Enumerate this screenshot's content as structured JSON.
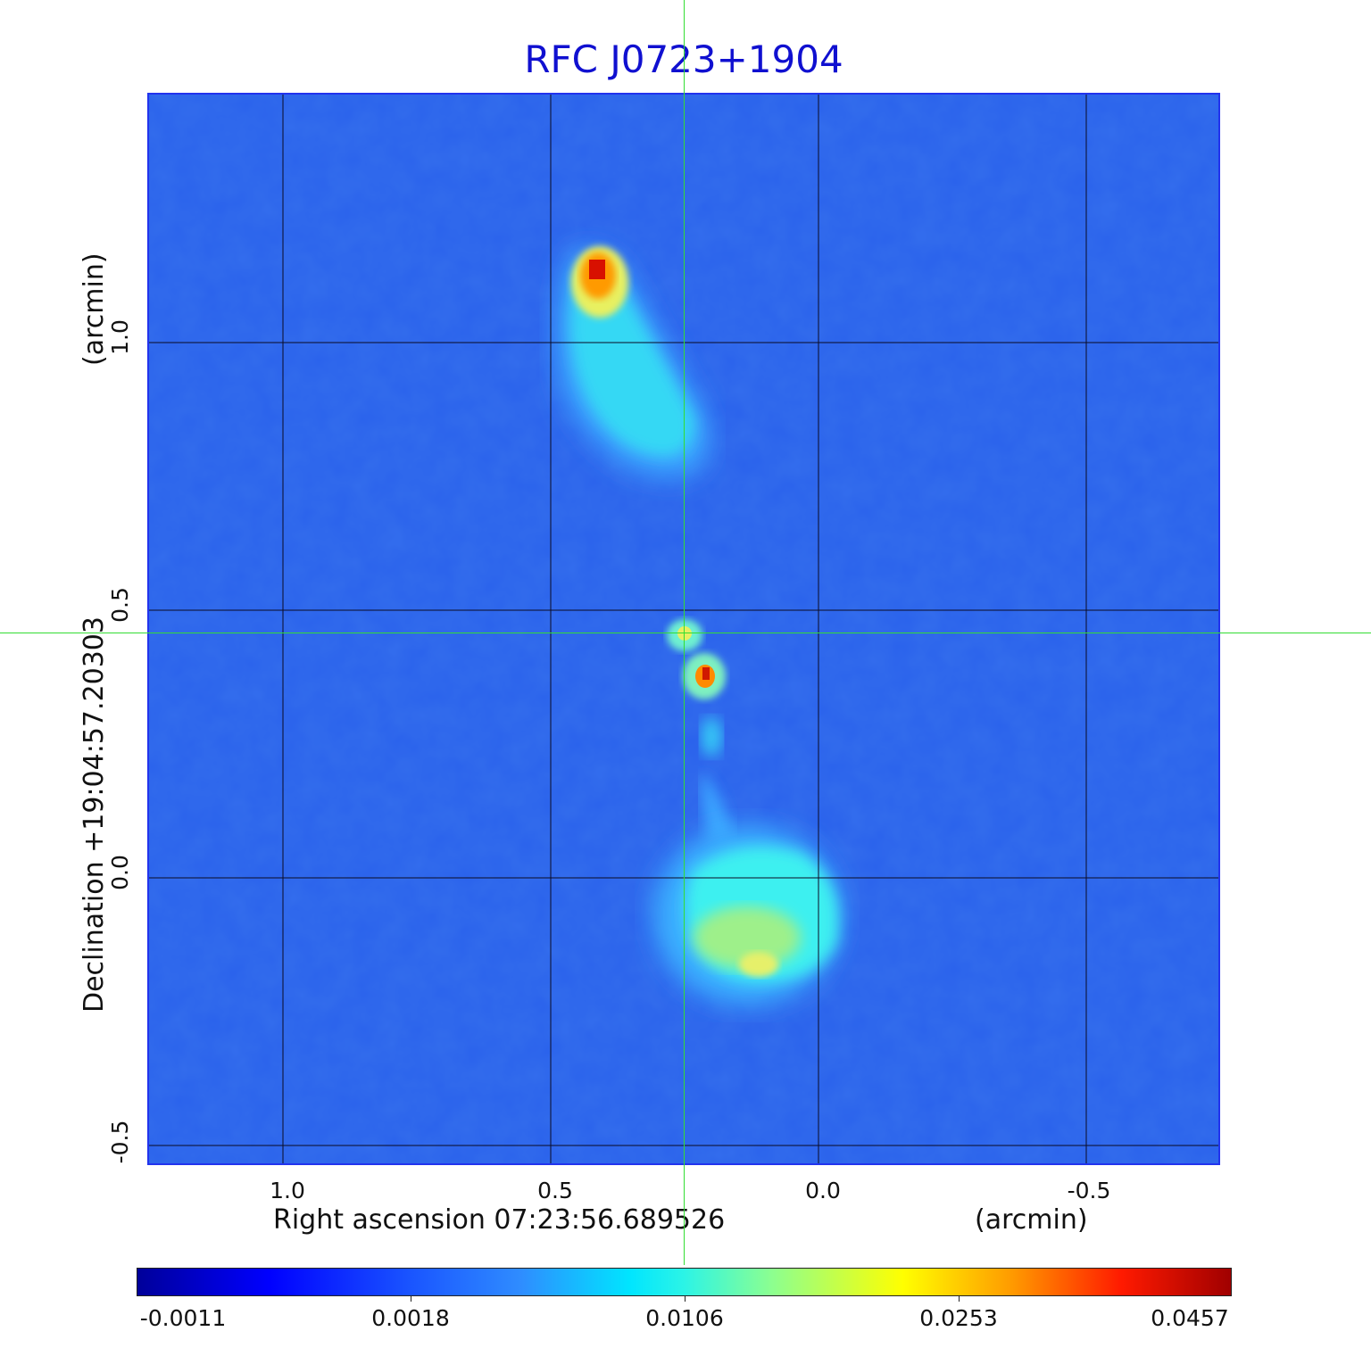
{
  "title": "RFC J0723+1904",
  "x_axis": {
    "label_main": "Right ascension  07:23:56.689526",
    "label_unit": "(arcmin)",
    "ticks": [
      "1.0",
      "0.5",
      "0.0",
      "-0.5"
    ]
  },
  "y_axis": {
    "label_main": "Declination  +19:04:57.20303",
    "label_unit": "(arcmin)",
    "ticks": [
      "1.0",
      "0.5",
      "0.0",
      "-0.5"
    ]
  },
  "colorbar": {
    "labels": [
      "-0.0011",
      "0.0018",
      "0.0106",
      "0.0253",
      "0.0457"
    ],
    "colormap": "jet"
  },
  "colors": {
    "title": "#1010d0",
    "crosshair": "#33dd33",
    "background_map": "#2a62ec"
  }
}
